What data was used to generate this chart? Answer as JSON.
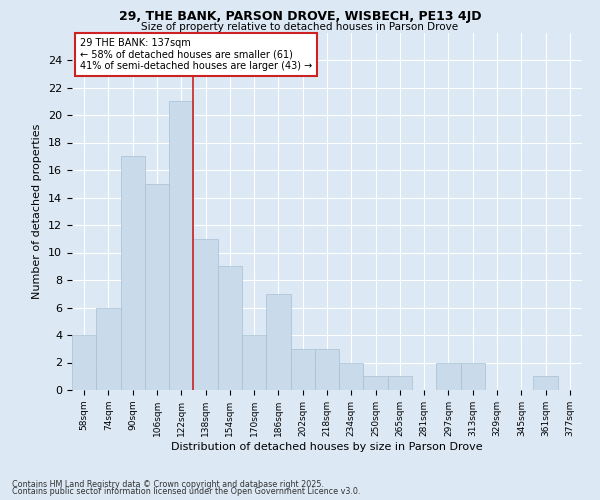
{
  "title1": "29, THE BANK, PARSON DROVE, WISBECH, PE13 4JD",
  "title2": "Size of property relative to detached houses in Parson Drove",
  "xlabel": "Distribution of detached houses by size in Parson Drove",
  "ylabel": "Number of detached properties",
  "categories": [
    "58sqm",
    "74sqm",
    "90sqm",
    "106sqm",
    "122sqm",
    "138sqm",
    "154sqm",
    "170sqm",
    "186sqm",
    "202sqm",
    "218sqm",
    "234sqm",
    "250sqm",
    "265sqm",
    "281sqm",
    "297sqm",
    "313sqm",
    "329sqm",
    "345sqm",
    "361sqm",
    "377sqm"
  ],
  "values": [
    4,
    6,
    17,
    15,
    21,
    11,
    9,
    4,
    7,
    3,
    3,
    2,
    1,
    1,
    0,
    2,
    2,
    0,
    0,
    1,
    0
  ],
  "bar_color": "#c9daea",
  "bar_edge_color": "#a8c0d4",
  "vline_x": 4.5,
  "vline_color": "#cc2222",
  "annotation_title": "29 THE BANK: 137sqm",
  "annotation_line1": "← 58% of detached houses are smaller (61)",
  "annotation_line2": "41% of semi-detached houses are larger (43) →",
  "annotation_box_color": "#ffffff",
  "annotation_box_edge": "#cc2222",
  "background_color": "#dce8f4",
  "grid_color": "#ffffff",
  "ylim": [
    0,
    26
  ],
  "yticks": [
    0,
    2,
    4,
    6,
    8,
    10,
    12,
    14,
    16,
    18,
    20,
    22,
    24
  ],
  "footer1": "Contains HM Land Registry data © Crown copyright and database right 2025.",
  "footer2": "Contains public sector information licensed under the Open Government Licence v3.0."
}
